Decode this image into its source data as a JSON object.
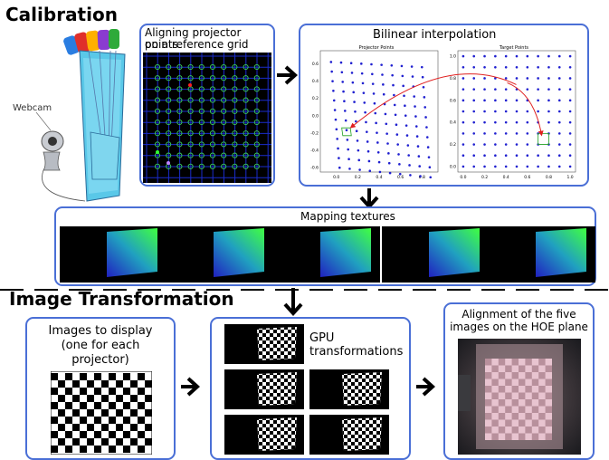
{
  "headings": {
    "calibration": "Calibration",
    "image_transformation": "Image Transformation"
  },
  "calibration": {
    "webcam_label": "Webcam",
    "aligning_caption_line1": "Aligning projector points",
    "aligning_caption_line2": "on a reference grid",
    "bilinear_title": "Bilinear interpolation",
    "projector_plot_title": "Projector Points",
    "target_plot_title": "Target Points",
    "mapping_title": "Mapping textures"
  },
  "transformation": {
    "images_caption_line1": "Images to display",
    "images_caption_line2": "(one for each",
    "images_caption_line3": "projector)",
    "gpu_caption_line1": "GPU",
    "gpu_caption_line2": "transformations",
    "alignment_caption_line1": "Alignment of the five",
    "alignment_caption_line2": "images on the HOE plane"
  },
  "chart_data": [
    {
      "type": "scatter",
      "title": "Projector Points",
      "x_ticks": [
        "0.0",
        "0.2",
        "0.4",
        "0.6",
        "0.8"
      ],
      "y_ticks": [
        "0.6",
        "0.4",
        "0.2",
        "0.0",
        "-0.2",
        "-0.4",
        "-0.6"
      ],
      "xlim": [
        -0.15,
        0.95
      ],
      "ylim": [
        -0.65,
        0.75
      ]
    },
    {
      "type": "scatter",
      "title": "Target Points",
      "x_ticks": [
        "0.0",
        "0.2",
        "0.4",
        "0.6",
        "0.8",
        "1.0"
      ],
      "y_ticks": [
        "1.0",
        "0.8",
        "0.6",
        "0.4",
        "0.2",
        "0.0"
      ],
      "xlim": [
        -0.05,
        1.05
      ],
      "ylim": [
        -0.05,
        1.05
      ]
    }
  ],
  "colors": {
    "panel_border": "#4a6fd6",
    "points": "#2020d0",
    "arrow_red": "#e02020",
    "grid_blue": "#1a2ccc",
    "grid_circle": "#3bd35a"
  }
}
